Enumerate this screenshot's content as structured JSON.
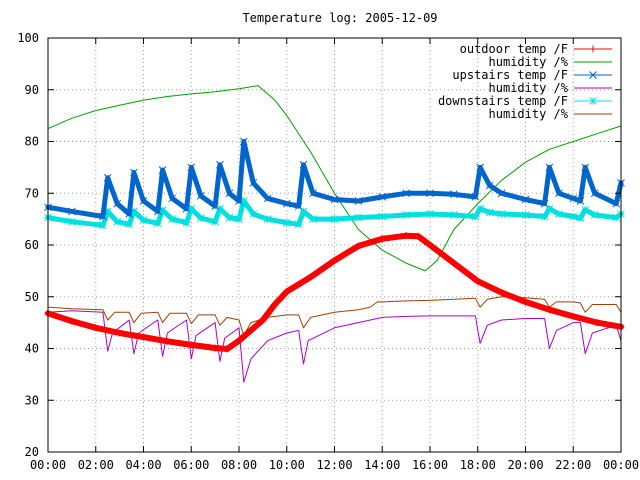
{
  "chart_data": {
    "type": "line",
    "title": "Temperature log: 2005-12-09",
    "xlabel": "",
    "ylabel": "",
    "xlim": [
      0,
      24
    ],
    "ylim": [
      20,
      100
    ],
    "grid": true,
    "legend": "top-right",
    "xticks": [
      {
        "v": 0,
        "label": "00:00"
      },
      {
        "v": 2,
        "label": "02:00"
      },
      {
        "v": 4,
        "label": "04:00"
      },
      {
        "v": 6,
        "label": "06:00"
      },
      {
        "v": 8,
        "label": "08:00"
      },
      {
        "v": 10,
        "label": "10:00"
      },
      {
        "v": 12,
        "label": "12:00"
      },
      {
        "v": 14,
        "label": "14:00"
      },
      {
        "v": 16,
        "label": "16:00"
      },
      {
        "v": 18,
        "label": "18:00"
      },
      {
        "v": 20,
        "label": "20:00"
      },
      {
        "v": 22,
        "label": "22:00"
      },
      {
        "v": 24,
        "label": "00:00"
      }
    ],
    "yticks": [
      {
        "v": 20,
        "label": "20"
      },
      {
        "v": 30,
        "label": "30"
      },
      {
        "v": 40,
        "label": "40"
      },
      {
        "v": 50,
        "label": "50"
      },
      {
        "v": 60,
        "label": "60"
      },
      {
        "v": 70,
        "label": "70"
      },
      {
        "v": 80,
        "label": "80"
      },
      {
        "v": 90,
        "label": "90"
      },
      {
        "v": 100,
        "label": "100"
      }
    ],
    "series": [
      {
        "name": "outdoor temp /F",
        "color": "#ff0000",
        "marker": "plus",
        "style": "thick",
        "points": [
          [
            0,
            46.8
          ],
          [
            1,
            45.3
          ],
          [
            2,
            44.0
          ],
          [
            3,
            43.0
          ],
          [
            4,
            42.2
          ],
          [
            5,
            41.4
          ],
          [
            6,
            40.7
          ],
          [
            7,
            40.1
          ],
          [
            7.5,
            39.9
          ],
          [
            8,
            41.5
          ],
          [
            9,
            45.5
          ],
          [
            9.5,
            48.5
          ],
          [
            10,
            51.0
          ],
          [
            11,
            53.8
          ],
          [
            12,
            57.0
          ],
          [
            13,
            59.8
          ],
          [
            14,
            61.2
          ],
          [
            15,
            61.8
          ],
          [
            15.5,
            61.7
          ],
          [
            16,
            60.0
          ],
          [
            17,
            56.5
          ],
          [
            18,
            53.0
          ],
          [
            19,
            50.8
          ],
          [
            20,
            49.0
          ],
          [
            21,
            47.5
          ],
          [
            22,
            46.2
          ],
          [
            23,
            45.0
          ],
          [
            24,
            44.2
          ]
        ]
      },
      {
        "name": "humidity /%",
        "color": "#00a000",
        "marker": "none",
        "style": "thin",
        "points": [
          [
            0,
            82.5
          ],
          [
            1,
            84.5
          ],
          [
            2,
            86.0
          ],
          [
            3,
            87.0
          ],
          [
            4,
            88.0
          ],
          [
            5,
            88.7
          ],
          [
            6,
            89.2
          ],
          [
            7,
            89.6
          ],
          [
            8,
            90.2
          ],
          [
            8.8,
            90.8
          ],
          [
            9.5,
            88.0
          ],
          [
            10,
            85.0
          ],
          [
            11,
            78.0
          ],
          [
            12,
            70.0
          ],
          [
            13,
            63.0
          ],
          [
            14,
            59.0
          ],
          [
            15,
            56.5
          ],
          [
            15.8,
            55.0
          ],
          [
            16.3,
            57.0
          ],
          [
            17,
            63.0
          ],
          [
            18,
            68.0
          ],
          [
            19,
            72.5
          ],
          [
            20,
            76.0
          ],
          [
            21,
            78.5
          ],
          [
            22,
            80.0
          ],
          [
            23,
            81.5
          ],
          [
            24,
            83.0
          ]
        ]
      },
      {
        "name": "upstairs temp /F",
        "color": "#0066cc",
        "marker": "x",
        "style": "thick",
        "points": [
          [
            0,
            67.3
          ],
          [
            1,
            66.5
          ],
          [
            2.3,
            65.5
          ],
          [
            2.5,
            73.0
          ],
          [
            2.9,
            68.0
          ],
          [
            3.4,
            66.0
          ],
          [
            3.6,
            74.0
          ],
          [
            4.0,
            68.5
          ],
          [
            4.6,
            66.5
          ],
          [
            4.8,
            74.5
          ],
          [
            5.2,
            69.0
          ],
          [
            5.8,
            67.0
          ],
          [
            6.0,
            75.0
          ],
          [
            6.4,
            69.5
          ],
          [
            7.0,
            67.5
          ],
          [
            7.2,
            75.5
          ],
          [
            7.6,
            70.0
          ],
          [
            8.0,
            68.5
          ],
          [
            8.2,
            80.0
          ],
          [
            8.6,
            72.0
          ],
          [
            9.2,
            69.0
          ],
          [
            10,
            68.0
          ],
          [
            10.5,
            67.5
          ],
          [
            10.7,
            75.5
          ],
          [
            11.1,
            70.0
          ],
          [
            12,
            68.8
          ],
          [
            13,
            68.5
          ],
          [
            14,
            69.3
          ],
          [
            15,
            70.0
          ],
          [
            16,
            70.0
          ],
          [
            17,
            69.8
          ],
          [
            17.9,
            69.3
          ],
          [
            18.1,
            75.0
          ],
          [
            18.5,
            71.5
          ],
          [
            19,
            70.0
          ],
          [
            20,
            68.8
          ],
          [
            20.8,
            68.0
          ],
          [
            21.0,
            75.0
          ],
          [
            21.4,
            70.0
          ],
          [
            22,
            69.0
          ],
          [
            22.3,
            68.5
          ],
          [
            22.5,
            75.0
          ],
          [
            22.9,
            70.0
          ],
          [
            23.8,
            68.0
          ],
          [
            24,
            72.0
          ]
        ]
      },
      {
        "name": "humidity /%",
        "color": "#aa00cc",
        "marker": "none",
        "style": "thin",
        "points": [
          [
            0,
            47.0
          ],
          [
            1,
            47.3
          ],
          [
            2.3,
            47.0
          ],
          [
            2.5,
            39.5
          ],
          [
            2.7,
            43.0
          ],
          [
            3.4,
            45.5
          ],
          [
            3.6,
            39.0
          ],
          [
            3.8,
            43.0
          ],
          [
            4.6,
            45.5
          ],
          [
            4.8,
            38.5
          ],
          [
            5.0,
            43.0
          ],
          [
            5.8,
            45.5
          ],
          [
            6.0,
            38.0
          ],
          [
            6.2,
            42.5
          ],
          [
            7.0,
            45.0
          ],
          [
            7.2,
            37.5
          ],
          [
            7.4,
            42.0
          ],
          [
            8.0,
            44.0
          ],
          [
            8.2,
            33.5
          ],
          [
            8.5,
            38.0
          ],
          [
            9.2,
            41.5
          ],
          [
            10,
            43.0
          ],
          [
            10.5,
            43.5
          ],
          [
            10.7,
            37.0
          ],
          [
            10.9,
            41.5
          ],
          [
            12,
            44.0
          ],
          [
            13,
            45.0
          ],
          [
            13.5,
            45.5
          ],
          [
            14,
            46.0
          ],
          [
            15,
            46.2
          ],
          [
            16,
            46.3
          ],
          [
            17,
            46.3
          ],
          [
            17.9,
            46.3
          ],
          [
            18.1,
            41.0
          ],
          [
            18.4,
            44.5
          ],
          [
            19,
            45.5
          ],
          [
            20,
            45.8
          ],
          [
            20.8,
            45.8
          ],
          [
            21.0,
            40.0
          ],
          [
            21.3,
            43.5
          ],
          [
            22,
            45.0
          ],
          [
            22.3,
            45.0
          ],
          [
            22.5,
            39.0
          ],
          [
            22.8,
            43.0
          ],
          [
            23.8,
            44.5
          ],
          [
            24,
            41.5
          ]
        ]
      },
      {
        "name": "downstairs temp /F",
        "color": "#00e0e0",
        "marker": "star",
        "style": "thick",
        "points": [
          [
            0,
            65.3
          ],
          [
            1,
            64.5
          ],
          [
            2.3,
            63.8
          ],
          [
            2.5,
            66.5
          ],
          [
            2.9,
            64.5
          ],
          [
            3.4,
            64.0
          ],
          [
            3.6,
            66.5
          ],
          [
            4.0,
            64.8
          ],
          [
            4.6,
            64.2
          ],
          [
            4.8,
            66.7
          ],
          [
            5.2,
            65.0
          ],
          [
            5.8,
            64.3
          ],
          [
            6.0,
            67.0
          ],
          [
            6.4,
            65.2
          ],
          [
            7.0,
            64.5
          ],
          [
            7.2,
            67.0
          ],
          [
            7.6,
            65.3
          ],
          [
            8.0,
            65.0
          ],
          [
            8.2,
            68.5
          ],
          [
            8.6,
            66.0
          ],
          [
            9.2,
            65.0
          ],
          [
            10,
            64.3
          ],
          [
            10.5,
            64.0
          ],
          [
            10.7,
            66.5
          ],
          [
            11.1,
            65.0
          ],
          [
            12,
            65.0
          ],
          [
            13,
            65.3
          ],
          [
            14,
            65.5
          ],
          [
            15,
            65.8
          ],
          [
            16,
            66.0
          ],
          [
            17,
            65.8
          ],
          [
            17.9,
            65.5
          ],
          [
            18.1,
            67.0
          ],
          [
            18.5,
            66.3
          ],
          [
            19,
            66.0
          ],
          [
            20,
            65.8
          ],
          [
            20.8,
            65.5
          ],
          [
            21.0,
            67.0
          ],
          [
            21.4,
            66.0
          ],
          [
            22,
            65.5
          ],
          [
            22.3,
            65.2
          ],
          [
            22.5,
            66.8
          ],
          [
            22.9,
            65.8
          ],
          [
            23.8,
            65.3
          ],
          [
            24,
            66.0
          ]
        ]
      },
      {
        "name": "humidity /%",
        "color": "#a04000",
        "marker": "none",
        "style": "thin",
        "points": [
          [
            0,
            48.0
          ],
          [
            1,
            47.7
          ],
          [
            2.3,
            47.5
          ],
          [
            2.5,
            45.5
          ],
          [
            2.8,
            47.0
          ],
          [
            3.4,
            47.0
          ],
          [
            3.6,
            45.0
          ],
          [
            3.9,
            46.8
          ],
          [
            4.6,
            47.0
          ],
          [
            4.8,
            45.0
          ],
          [
            5.1,
            46.8
          ],
          [
            5.8,
            46.8
          ],
          [
            6.0,
            44.8
          ],
          [
            6.3,
            46.5
          ],
          [
            7.0,
            46.5
          ],
          [
            7.2,
            44.5
          ],
          [
            7.5,
            46.0
          ],
          [
            8.0,
            45.5
          ],
          [
            8.2,
            42.5
          ],
          [
            8.5,
            45.0
          ],
          [
            9.2,
            46.0
          ],
          [
            10,
            46.5
          ],
          [
            10.5,
            46.5
          ],
          [
            10.7,
            44.0
          ],
          [
            11.0,
            46.0
          ],
          [
            12,
            47.0
          ],
          [
            13,
            47.5
          ],
          [
            13.5,
            48.0
          ],
          [
            13.8,
            49.0
          ],
          [
            14,
            49.0
          ],
          [
            15,
            49.2
          ],
          [
            16,
            49.3
          ],
          [
            17,
            49.5
          ],
          [
            17.9,
            49.7
          ],
          [
            18.1,
            48.0
          ],
          [
            18.4,
            49.5
          ],
          [
            19,
            50.0
          ],
          [
            20,
            49.8
          ],
          [
            20.8,
            49.5
          ],
          [
            21.0,
            48.0
          ],
          [
            21.3,
            49.0
          ],
          [
            22,
            49.0
          ],
          [
            22.3,
            48.8
          ],
          [
            22.5,
            47.0
          ],
          [
            22.8,
            48.5
          ],
          [
            23.8,
            48.5
          ],
          [
            24,
            47.0
          ]
        ]
      }
    ]
  }
}
